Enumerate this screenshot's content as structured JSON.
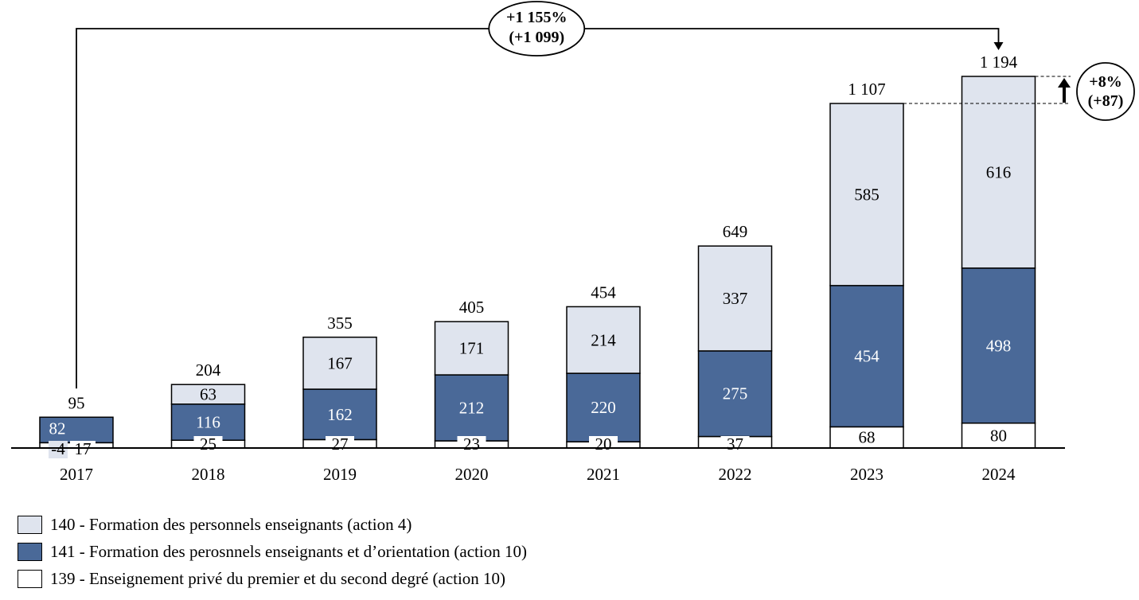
{
  "chart_data": {
    "type": "bar",
    "stacked": true,
    "categories": [
      "2017",
      "2018",
      "2019",
      "2020",
      "2021",
      "2022",
      "2023",
      "2024"
    ],
    "series": [
      {
        "name": "139 - Enseignement privé du premier et du second degré (action 10)",
        "values": [
          17,
          25,
          27,
          23,
          20,
          37,
          68,
          80
        ],
        "color": "#ffffff"
      },
      {
        "name": "141 - Formation des perosnnels enseignants et d’orientation (action 10)",
        "values": [
          82,
          116,
          162,
          212,
          220,
          275,
          454,
          498
        ],
        "color": "#4a6998"
      },
      {
        "name": "140 - Formation des personnels enseignants (action 4)",
        "values": [
          -4,
          63,
          167,
          171,
          214,
          337,
          585,
          616
        ],
        "color": "#dfe4ee"
      }
    ],
    "totals": [
      "95",
      "204",
      "355",
      "405",
      "454",
      "649",
      "1 107",
      "1 194"
    ],
    "segment_labels": {
      "139": [
        "17",
        "25",
        "27",
        "23",
        "20",
        "37",
        "68",
        "80"
      ],
      "141": [
        "82",
        "116",
        "162",
        "212",
        "220",
        "275",
        "454",
        "498"
      ],
      "140": [
        "-4",
        "63",
        "167",
        "171",
        "214",
        "337",
        "585",
        "616"
      ]
    },
    "ylim": [
      -4,
      1194
    ],
    "annotations": {
      "overall_change_pct": "+1 155%",
      "overall_change_abs": "(+1 099)",
      "last_change_pct": "+8%",
      "last_change_abs": "(+87)"
    },
    "legend_order": [
      "140",
      "141",
      "139"
    ],
    "legend_position": "bottom-left"
  },
  "legend": {
    "items": [
      {
        "label": "140 - Formation des personnels enseignants (action 4)",
        "color": "#dfe4ee"
      },
      {
        "label": "141 - Formation des perosnnels enseignants et d’orientation (action 10)",
        "color": "#4a6998"
      },
      {
        "label": "139 - Enseignement privé du premier et du second degré (action 10)",
        "color": "#ffffff"
      }
    ]
  }
}
